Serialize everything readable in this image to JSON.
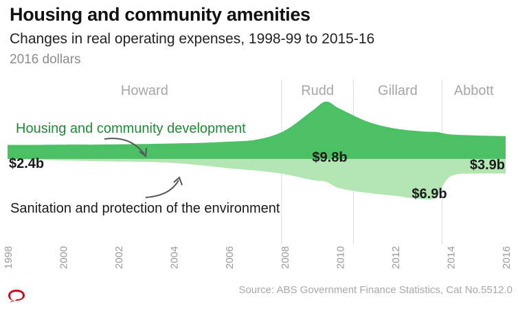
{
  "title": "Housing and community amenities",
  "subtitle": "Changes in real operating expenses, 1998-99 to 2015-16",
  "units": "2016 dollars",
  "source": "Source: ABS Government Finance Statistics, Cat No.5512.0",
  "colors": {
    "housing": "#4cc064",
    "sanitation": "#b4e6b3",
    "era_label": "#a6a6a6",
    "callout_text": "#1e8a35",
    "logo": "#d0021b"
  },
  "chart_data": {
    "type": "area",
    "title": "Housing and community amenities",
    "subtitle": "Changes in real operating expenses, 1998-99 to 2015-16",
    "units": "2016 dollars",
    "x": [
      1998,
      1999,
      2000,
      2001,
      2002,
      2003,
      2004,
      2005,
      2006,
      2007,
      2008,
      2009,
      2009.5,
      2010,
      2011,
      2012,
      2013,
      2013.5,
      2014,
      2015,
      2016
    ],
    "x_ticks": [
      "1998",
      "2000",
      "2002",
      "2004",
      "2006",
      "2008",
      "2010",
      "2012",
      "2014",
      "2016"
    ],
    "xlim": [
      1998,
      2016
    ],
    "series": [
      {
        "name": "Housing and community development",
        "color": "#4cc064",
        "values": [
          2.4,
          2.4,
          2.45,
          2.45,
          2.5,
          2.55,
          2.65,
          2.75,
          2.95,
          3.3,
          4.8,
          8.2,
          9.8,
          8.6,
          6.4,
          5.2,
          4.7,
          4.6,
          4.2,
          4.0,
          3.9
        ]
      },
      {
        "name": "Sanitation and protection of the environment",
        "color": "#b4e6b3",
        "values": [
          0.0,
          0.15,
          0.25,
          0.35,
          0.45,
          0.5,
          0.7,
          1.1,
          1.6,
          2.0,
          2.6,
          3.6,
          3.9,
          5.0,
          5.8,
          6.3,
          6.9,
          6.5,
          3.0,
          2.5,
          2.5
        ]
      }
    ],
    "eras": [
      {
        "label": "Howard",
        "start": 1998,
        "end": 2007.9
      },
      {
        "label": "Rudd",
        "start": 2007.9,
        "end": 2010.5
      },
      {
        "label": "Gillard",
        "start": 2010.5,
        "end": 2013.7
      },
      {
        "label": "Abbott",
        "start": 2013.7,
        "end": 2016
      }
    ],
    "value_labels": [
      {
        "text": "$2.4b",
        "x": 1998
      },
      {
        "text": "$9.8b",
        "x": 2009.5
      },
      {
        "text": "$6.9b",
        "x": 2012.5
      },
      {
        "text": "$3.9b",
        "x": 2016
      }
    ],
    "annotations": [
      {
        "text": "Housing and community development",
        "series": "Housing and community development"
      },
      {
        "text": "Sanitation and protection of the environment",
        "series": "Sanitation and protection of the environment"
      }
    ],
    "grid": false,
    "legend": "inline annotations"
  }
}
